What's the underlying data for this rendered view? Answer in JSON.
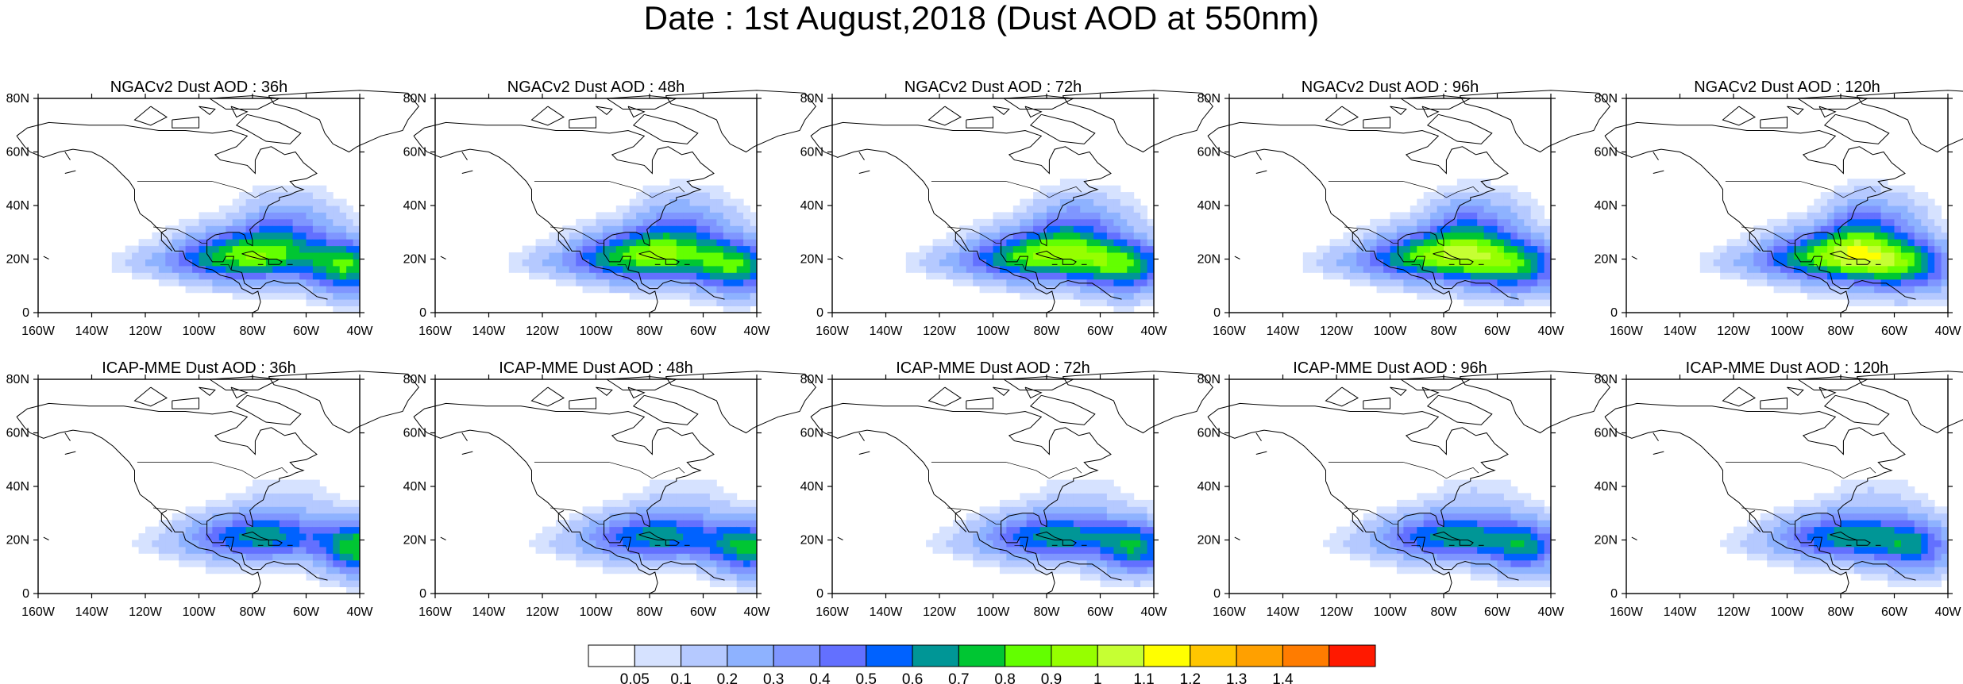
{
  "title": "Date : 1st August,2018 (Dust AOD at 550nm)",
  "rows": [
    {
      "model": "NGACv2",
      "panels": [
        {
          "title": "NGACv2 Dust AOD : 36h",
          "lead": 36
        },
        {
          "title": "NGACv2 Dust AOD : 48h",
          "lead": 48
        },
        {
          "title": "NGACv2 Dust AOD : 72h",
          "lead": 72
        },
        {
          "title": "NGACv2 Dust AOD : 96h",
          "lead": 96
        },
        {
          "title": "NGACv2 Dust AOD : 120h",
          "lead": 120
        }
      ]
    },
    {
      "model": "ICAP-MME",
      "panels": [
        {
          "title": "ICAP-MME Dust AOD : 36h",
          "lead": 36
        },
        {
          "title": "ICAP-MME Dust AOD : 48h",
          "lead": 48
        },
        {
          "title": "ICAP-MME Dust AOD : 72h",
          "lead": 72
        },
        {
          "title": "ICAP-MME Dust AOD : 96h",
          "lead": 96
        },
        {
          "title": "ICAP-MME Dust AOD : 120h",
          "lead": 120
        }
      ]
    }
  ],
  "lon_ticks": [
    "160W",
    "140W",
    "120W",
    "100W",
    "80W",
    "60W",
    "40W"
  ],
  "lon_values": [
    -160,
    -140,
    -120,
    -100,
    -80,
    -60,
    -40
  ],
  "lat_ticks": [
    "0",
    "20N",
    "40N",
    "60N",
    "80N"
  ],
  "lat_values": [
    0,
    20,
    40,
    60,
    80
  ],
  "extent": {
    "lon": [
      -160,
      -40
    ],
    "lat": [
      0,
      80
    ]
  },
  "colorbar": {
    "colors": [
      "#ffffff",
      "#d6e2ff",
      "#b5c9ff",
      "#8eb2ff",
      "#7f96ff",
      "#6370ff",
      "#0062ff",
      "#009696",
      "#00c633",
      "#63ff00",
      "#96ff00",
      "#c6ff33",
      "#ffff00",
      "#ffc600",
      "#ffa000",
      "#ff7c00",
      "#ff1900"
    ],
    "labels": [
      "0.05",
      "0.1",
      "0.2",
      "0.3",
      "0.4",
      "0.5",
      "0.6",
      "0.7",
      "0.8",
      "0.9",
      "1",
      "1.1",
      "1.2",
      "1.3",
      "1.4"
    ]
  }
}
